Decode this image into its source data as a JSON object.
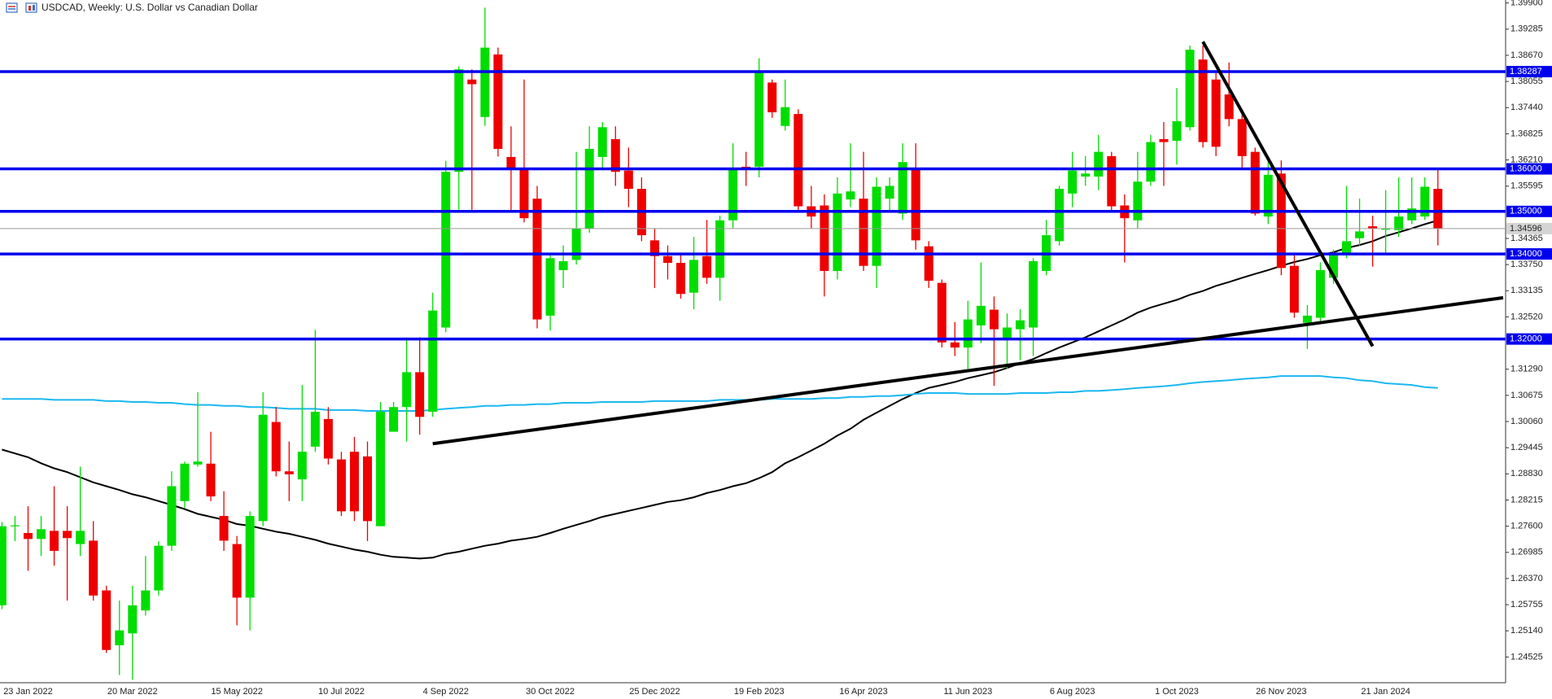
{
  "chart_data": {
    "type": "candlestick",
    "title": "USDCAD, Weekly:  U.S. Dollar vs Canadian Dollar",
    "up_color": "#00dd00",
    "down_color": "#ee0000",
    "categories": [
      null,
      null,
      "23 Jan 2022",
      null,
      null,
      null,
      null,
      null,
      null,
      null,
      "20 Mar 2022",
      null,
      null,
      null,
      null,
      null,
      null,
      null,
      "15 May 2022",
      null,
      null,
      null,
      null,
      null,
      null,
      null,
      "10 Jul 2022",
      null,
      null,
      null,
      null,
      null,
      null,
      null,
      "4 Sep 2022",
      null,
      null,
      null,
      null,
      null,
      null,
      null,
      "30 Oct 2022",
      null,
      null,
      null,
      null,
      null,
      null,
      null,
      "25 Dec 2022",
      null,
      null,
      null,
      null,
      null,
      null,
      null,
      "19 Feb 2023",
      null,
      null,
      null,
      null,
      null,
      null,
      null,
      "16 Apr 2023",
      null,
      null,
      null,
      null,
      null,
      null,
      null,
      "11 Jun 2023",
      null,
      null,
      null,
      null,
      null,
      null,
      null,
      "6 Aug 2023",
      null,
      null,
      null,
      null,
      null,
      null,
      null,
      "1 Oct 2023",
      null,
      null,
      null,
      null,
      null,
      null,
      null,
      "26 Nov 2023",
      null,
      null,
      null,
      null,
      null,
      null,
      null,
      "21 Jan 2024",
      null,
      null,
      null,
      null
    ],
    "open": [
      1.2574,
      1.276,
      1.2744,
      1.273,
      1.2749,
      1.2749,
      1.2718,
      1.2726,
      1.2609,
      1.248,
      1.2508,
      1.2562,
      1.2609,
      1.2714,
      1.2819,
      1.2905,
      1.2907,
      1.2784,
      1.2718,
      1.2592,
      1.2772,
      1.3005,
      1.2889,
      1.287,
      1.2947,
      1.3012,
      1.2917,
      1.2935,
      1.2924,
      1.276,
      1.2982,
      1.304,
      1.3122,
      1.3029,
      1.3227,
      1.3593,
      1.381,
      1.3722,
      1.3869,
      1.3628,
      1.36,
      1.353,
      1.3255,
      1.3362,
      1.3386,
      1.346,
      1.3628,
      1.367,
      1.3596,
      1.3553,
      1.3432,
      1.3395,
      1.3379,
      1.3309,
      1.3395,
      1.3344,
      1.3479,
      1.3605,
      1.3605,
      1.3803,
      1.3701,
      1.3729,
      1.3512,
      1.3514,
      1.336,
      1.3528,
      1.353,
      1.3372,
      1.353,
      1.3495,
      1.36,
      1.3418,
      1.3332,
      1.3192,
      1.318,
      1.3232,
      1.3269,
      1.3199,
      1.3223,
      1.3227,
      1.336,
      1.343,
      1.3542,
      1.3582,
      1.3582,
      1.363,
      1.3514,
      1.3479,
      1.357,
      1.367,
      1.3666,
      1.3698,
      1.3857,
      1.381,
      1.3775,
      1.3717,
      1.364,
      1.3488,
      1.3589,
      1.3372,
      1.3238,
      1.325,
      1.3344,
      1.34,
      1.3437,
      1.3465,
      1.3457,
      1.3456,
      1.3479,
      1.3488,
      1.3553
    ],
    "high": [
      1.277,
      1.2784,
      1.2807,
      1.2784,
      1.2854,
      1.2807,
      1.29,
      1.2772,
      1.262,
      1.2585,
      1.262,
      1.269,
      1.2725,
      1.2889,
      1.2912,
      1.3075,
      1.2982,
      1.2842,
      1.2737,
      1.2795,
      1.3075,
      1.304,
      1.2959,
      1.3092,
      1.3222,
      1.304,
      1.2935,
      1.297,
      1.2959,
      1.3052,
      1.3052,
      1.3204,
      1.3204,
      1.3309,
      1.3619,
      1.3841,
      1.3834,
      1.3979,
      1.3885,
      1.37,
      1.381,
      1.356,
      1.34,
      1.342,
      1.364,
      1.37,
      1.371,
      1.37,
      1.365,
      1.358,
      1.346,
      1.342,
      1.34,
      1.344,
      1.348,
      1.349,
      1.366,
      1.364,
      1.386,
      1.381,
      1.381,
      1.374,
      1.356,
      1.354,
      1.358,
      1.366,
      1.364,
      1.358,
      1.358,
      1.366,
      1.366,
      1.343,
      1.334,
      1.324,
      1.329,
      1.338,
      1.33,
      1.326,
      1.327,
      1.339,
      1.348,
      1.356,
      1.364,
      1.363,
      1.368,
      1.364,
      1.354,
      1.364,
      1.368,
      1.371,
      1.379,
      1.389,
      1.389,
      1.383,
      1.385,
      1.373,
      1.365,
      1.362,
      1.362,
      1.34,
      1.328,
      1.338,
      1.341,
      1.356,
      1.353,
      1.349,
      1.355,
      1.358,
      1.358,
      1.358,
      1.36
    ],
    "low": [
      1.2565,
      1.2725,
      1.2655,
      1.269,
      1.2667,
      1.2585,
      1.269,
      1.2585,
      1.2462,
      1.241,
      1.2399,
      1.255,
      1.2597,
      1.2702,
      1.2802,
      1.29,
      1.2819,
      1.2702,
      1.2527,
      1.2515,
      1.276,
      1.2877,
      1.2819,
      1.2819,
      1.2935,
      1.2905,
      1.2784,
      1.2772,
      1.2725,
      1.276,
      1.2982,
      1.2959,
      1.2975,
      1.3017,
      1.3216,
      1.3504,
      1.35,
      1.3701,
      1.3629,
      1.35,
      1.3474,
      1.3225,
      1.322,
      1.332,
      1.3375,
      1.345,
      1.36,
      1.356,
      1.351,
      1.343,
      1.332,
      1.334,
      1.3295,
      1.327,
      1.333,
      1.329,
      1.346,
      1.356,
      1.358,
      1.372,
      1.369,
      1.35,
      1.346,
      1.33,
      1.334,
      1.351,
      1.336,
      1.332,
      1.35,
      1.348,
      1.341,
      1.332,
      1.318,
      1.316,
      1.313,
      1.319,
      1.309,
      1.313,
      1.315,
      1.316,
      1.335,
      1.342,
      1.351,
      1.356,
      1.355,
      1.35,
      1.338,
      1.346,
      1.356,
      1.356,
      1.361,
      1.369,
      1.365,
      1.363,
      1.37,
      1.36,
      1.349,
      1.347,
      1.335,
      1.325,
      1.3177,
      1.324,
      1.333,
      1.339,
      1.342,
      1.337,
      1.34,
      1.344,
      1.347,
      1.348,
      1.342
    ],
    "close": [
      1.276,
      1.2762,
      1.273,
      1.2753,
      1.2702,
      1.2732,
      1.2749,
      1.2597,
      1.2469,
      1.2515,
      1.2574,
      1.2609,
      1.2714,
      1.2854,
      1.2907,
      1.2912,
      1.283,
      1.2726,
      1.2592,
      1.2784,
      1.3022,
      1.2889,
      1.2882,
      1.2935,
      1.3029,
      1.2919,
      1.2795,
      1.2795,
      1.2772,
      1.3029,
      1.304,
      1.3122,
      1.3017,
      1.3267,
      1.3593,
      1.3834,
      1.3799,
      1.3885,
      1.3647,
      1.36,
      1.3484,
      1.3246,
      1.339,
      1.3383,
      1.346,
      1.3647,
      1.3698,
      1.3593,
      1.3553,
      1.3444,
      1.3395,
      1.3379,
      1.3306,
      1.3386,
      1.3344,
      1.3479,
      1.36,
      1.36,
      1.3829,
      1.3733,
      1.3745,
      1.3512,
      1.3488,
      1.336,
      1.3542,
      1.3547,
      1.3372,
      1.3558,
      1.356,
      1.3616,
      1.3432,
      1.3337,
      1.3192,
      1.318,
      1.3246,
      1.3278,
      1.3223,
      1.3227,
      1.3244,
      1.3383,
      1.3444,
      1.3553,
      1.3596,
      1.3589,
      1.364,
      1.3512,
      1.3484,
      1.357,
      1.3663,
      1.3663,
      1.3712,
      1.388,
      1.3663,
      1.3652,
      1.3717,
      1.363,
      1.3495,
      1.3586,
      1.3367,
      1.3262,
      1.3255,
      1.3362,
      1.3402,
      1.343,
      1.3453,
      1.346,
      1.346,
      1.3488,
      1.3507,
      1.3558,
      1.34596
    ],
    "moving_averages": [
      {
        "color": "#000000",
        "values": [
          1.294,
          1.2931,
          1.2922,
          1.2908,
          1.2896,
          1.2887,
          1.2875,
          1.2863,
          1.2854,
          1.2845,
          1.2835,
          1.2828,
          1.2819,
          1.281,
          1.28,
          1.2789,
          1.2782,
          1.2775,
          1.2765,
          1.2761,
          1.2754,
          1.2747,
          1.2742,
          1.2735,
          1.2728,
          1.2719,
          1.2712,
          1.2705,
          1.27,
          1.2693,
          1.2688,
          1.2686,
          1.2684,
          1.2686,
          1.2695,
          1.27,
          1.2707,
          1.2714,
          1.2719,
          1.2726,
          1.273,
          1.2735,
          1.2744,
          1.2754,
          1.2763,
          1.2772,
          1.2782,
          1.2789,
          1.2796,
          1.2803,
          1.281,
          1.2817,
          1.2821,
          1.2828,
          1.2838,
          1.2845,
          1.2854,
          1.2861,
          1.2873,
          1.2887,
          1.2908,
          1.2922,
          1.2938,
          1.2954,
          1.2973,
          1.2989,
          1.301,
          1.3027,
          1.3043,
          1.3059,
          1.3073,
          1.3085,
          1.3092,
          1.3099,
          1.3108,
          1.3115,
          1.3122,
          1.3132,
          1.3143,
          1.3153,
          1.3167,
          1.318,
          1.3192,
          1.3204,
          1.3218,
          1.3232,
          1.3246,
          1.3262,
          1.3274,
          1.3283,
          1.3292,
          1.3304,
          1.3313,
          1.3325,
          1.3334,
          1.3344,
          1.3353,
          1.3362,
          1.3372,
          1.3381,
          1.3388,
          1.3397,
          1.3404,
          1.3414,
          1.3421,
          1.343,
          1.3442,
          1.3451,
          1.346,
          1.347,
          1.3479
        ]
      },
      {
        "color": "#1ab8f0",
        "values": [
          1.3059,
          1.3059,
          1.3059,
          1.3059,
          1.3057,
          1.3057,
          1.3057,
          1.3057,
          1.3054,
          1.3054,
          1.3052,
          1.3052,
          1.305,
          1.305,
          1.3047,
          1.3045,
          1.3045,
          1.3043,
          1.3043,
          1.304,
          1.304,
          1.3038,
          1.3036,
          1.3036,
          1.3036,
          1.3033,
          1.3033,
          1.3033,
          1.3031,
          1.3031,
          1.3031,
          1.3031,
          1.3031,
          1.3033,
          1.3036,
          1.3038,
          1.304,
          1.3043,
          1.3043,
          1.3045,
          1.3045,
          1.3047,
          1.3047,
          1.305,
          1.305,
          1.305,
          1.3052,
          1.3052,
          1.3052,
          1.3052,
          1.3054,
          1.3054,
          1.3054,
          1.3054,
          1.3054,
          1.3057,
          1.3057,
          1.3057,
          1.3057,
          1.3059,
          1.3059,
          1.3059,
          1.3059,
          1.3061,
          1.3061,
          1.3064,
          1.3064,
          1.3066,
          1.3066,
          1.3068,
          1.3071,
          1.3073,
          1.3073,
          1.3073,
          1.3071,
          1.3071,
          1.3071,
          1.3071,
          1.3073,
          1.3073,
          1.3073,
          1.3075,
          1.3075,
          1.3078,
          1.3078,
          1.308,
          1.3082,
          1.3085,
          1.3087,
          1.3089,
          1.3092,
          1.3096,
          1.3099,
          1.3101,
          1.3103,
          1.3106,
          1.3108,
          1.311,
          1.3113,
          1.3113,
          1.3113,
          1.3113,
          1.311,
          1.3108,
          1.3103,
          1.3101,
          1.3096,
          1.3094,
          1.3092,
          1.3087,
          1.3085
        ]
      }
    ],
    "trendlines": [
      {
        "color": "#000000",
        "x": [
          33,
          115
        ],
        "values": [
          1.2954,
          1.3297
        ]
      },
      {
        "color": "#000000",
        "x": [
          92,
          105
        ],
        "values": [
          1.3899,
          1.3183
        ]
      }
    ],
    "levels": [
      1.38287,
      {
        "value": 1.36,
        "label": "1.36000"
      },
      {
        "value": 1.35,
        "label": "1.35000"
      },
      {
        "value": 1.34,
        "label": "1.34000"
      },
      {
        "value": 1.32,
        "label": "1.32000"
      }
    ],
    "level_color": "#0000ee",
    "current_price": 1.34596,
    "ylim": [
      1.2392,
      1.3997
    ],
    "yticks": [
      {
        "value": 1.399,
        "label": "1.39900"
      },
      1.39285,
      {
        "value": 1.3867,
        "label": "1.38670"
      },
      1.38055,
      {
        "value": 1.3744,
        "label": "1.37440"
      },
      1.36825,
      {
        "value": 1.3621,
        "label": "1.36210"
      },
      1.35595,
      1.34365,
      {
        "value": 1.3375,
        "label": "1.33750"
      },
      1.33135,
      {
        "value": 1.3252,
        "label": "1.32520"
      },
      {
        "value": 1.3129,
        "label": "1.31290"
      },
      1.30675,
      {
        "value": 1.3006,
        "label": "1.30060"
      },
      1.29445,
      {
        "value": 1.2883,
        "label": "1.28830"
      },
      1.28215,
      {
        "value": 1.276,
        "label": "1.27600"
      },
      1.26985,
      {
        "value": 1.2637,
        "label": "1.26370"
      },
      1.25755,
      {
        "value": 1.2514,
        "label": "1.25140"
      },
      1.24525
    ]
  }
}
